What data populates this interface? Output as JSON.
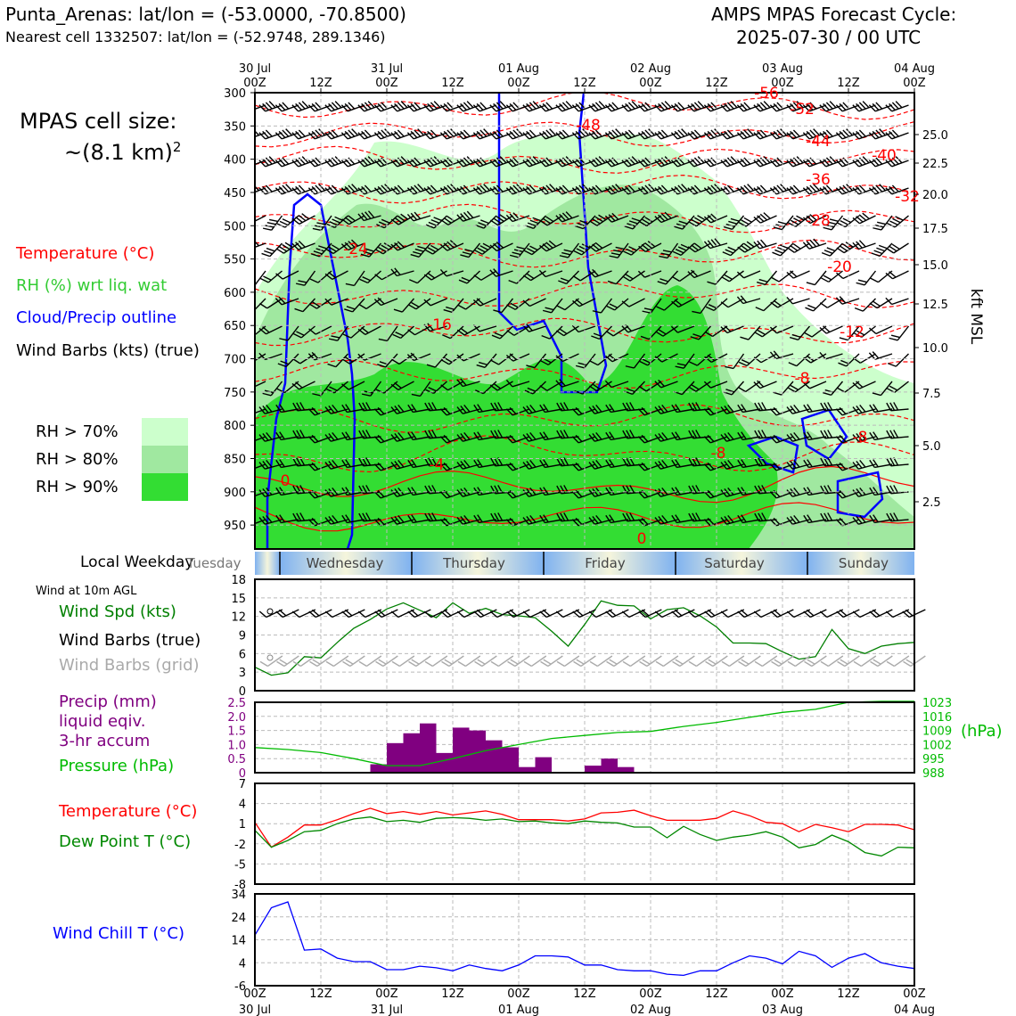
{
  "header": {
    "location": "Punta_Arenas: lat/lon = (-53.0000, -70.8500)",
    "nearest_cell": "Nearest cell 1332507: lat/lon = (-52.9748, 289.1346)",
    "cycle_title": "AMPS MPAS Forecast Cycle:",
    "cycle_time": "2025-07-30 / 00 UTC"
  },
  "cell_size": {
    "line1": "MPAS cell size:",
    "line2": "~(8.1 km)",
    "sup": "2"
  },
  "legend": {
    "temperature": "Temperature (°C)",
    "rh": "RH (%) wrt liq. wat",
    "cloud": "Cloud/Precip outline",
    "barbs": "Wind Barbs (kts) (true)",
    "rh70": "RH > 70%",
    "rh80": "RH > 80%",
    "rh90": "RH > 90%"
  },
  "colors": {
    "temperature": "#ff0000",
    "rh_label": "#33cc33",
    "cloud": "#0000ff",
    "rh70": "#ccffcc",
    "rh80": "#a0e8a0",
    "rh90": "#33dd33",
    "wind_spd": "#007f00",
    "precip": "#800080",
    "pressure": "#00bb00",
    "dewpoint": "#008800",
    "windchill": "#0000ff",
    "grid_barbs": "#aaaaaa"
  },
  "top_axis_dates": [
    "30 Jul",
    "31 Jul",
    "01 Aug",
    "02 Aug",
    "03 Aug",
    "04 Aug"
  ],
  "time_ticks": [
    "00Z",
    "12Z",
    "00Z",
    "12Z",
    "00Z",
    "12Z",
    "00Z",
    "12Z",
    "00Z",
    "12Z",
    "00Z"
  ],
  "bottom_axis_dates": [
    "30 Jul",
    "31 Jul",
    "01 Aug",
    "02 Aug",
    "03 Aug",
    "04 Aug"
  ],
  "cross_section": {
    "pressure_ticks": [
      "300",
      "350",
      "400",
      "450",
      "500",
      "550",
      "600",
      "650",
      "700",
      "750",
      "800",
      "850",
      "900",
      "950"
    ],
    "kft_ticks": [
      "25.0",
      "22.5",
      "20.0",
      "17.5",
      "15.0",
      "12.5",
      "10.0",
      "7.5",
      "5.0",
      "2.5"
    ],
    "kft_label": "kft MSL",
    "temp_labels": [
      "-56",
      "-52",
      "-48",
      "-44",
      "-40",
      "-36",
      "-32",
      "-28",
      "-24",
      "-20",
      "-16",
      "-12",
      "-8",
      "-8",
      "-8",
      "-4",
      "0",
      "0"
    ]
  },
  "weekday": {
    "label": "Local Weekday",
    "days": [
      "Tuesday",
      "Wednesday",
      "Thursday",
      "Friday",
      "Saturday",
      "Sunday"
    ]
  },
  "panel_wind": {
    "title": "Wind at 10m AGL",
    "spd_label": "Wind Spd (kts)",
    "barbs_true": "Wind Barbs (true)",
    "barbs_grid": "Wind Barbs (grid)",
    "y_ticks": [
      "18",
      "15",
      "12",
      "9",
      "6",
      "3",
      "0"
    ]
  },
  "panel_precip": {
    "precip_label": "Precip (mm)",
    "precip_label2": "liquid eqiv.",
    "precip_label3": "3-hr accum",
    "pressure_label": "Pressure (hPa)",
    "left_ticks": [
      "2.5",
      "2.0",
      "1.5",
      "1.0",
      "0.5",
      "0"
    ],
    "right_ticks": [
      "1023",
      "1016",
      "1009",
      "1002",
      "995",
      "988"
    ],
    "right_unit": "(hPa)"
  },
  "panel_temp": {
    "temp_label": "Temperature (°C)",
    "dew_label": "Dew Point T (°C)",
    "y_ticks": [
      "7",
      "4",
      "1",
      "-2",
      "-5",
      "-8"
    ]
  },
  "panel_chill": {
    "label": "Wind Chill T (°C)",
    "y_ticks": [
      "34",
      "24",
      "14",
      "4",
      "-6"
    ]
  },
  "chart_data": [
    {
      "type": "line",
      "title": "Wind at 10m AGL",
      "x_hours": [
        0,
        3,
        6,
        9,
        12,
        15,
        18,
        21,
        24,
        27,
        30,
        33,
        36,
        39,
        42,
        45,
        48,
        51,
        54,
        57,
        60,
        63,
        66,
        69,
        72,
        75,
        78,
        81,
        84,
        87,
        90,
        93,
        96,
        99,
        102,
        105,
        108,
        111,
        114,
        117,
        120
      ],
      "series": [
        {
          "name": "Wind Spd (kts)",
          "values": [
            3.8,
            2.5,
            2.9,
            5.5,
            5.3,
            7.8,
            10.1,
            11.5,
            13.2,
            14.2,
            13,
            11.8,
            14.2,
            12.5,
            13.3,
            12.3,
            12.1,
            11.8,
            9.6,
            7.2,
            10.7,
            14.5,
            13.8,
            13.7,
            11.6,
            13.1,
            13.4,
            12.1,
            10.3,
            7.7,
            7.7,
            7.6,
            6.3,
            5.1,
            5.5,
            9.9,
            6.8,
            6,
            7.2,
            7.6,
            7.8
          ]
        }
      ],
      "ylim": [
        0,
        18
      ]
    },
    {
      "type": "bar",
      "title": "Precip (mm) liquid eqiv. 3-hr accum",
      "x_start_hours": [
        21,
        24,
        27,
        30,
        33,
        36,
        39,
        42,
        45,
        48,
        51,
        60,
        63,
        66
      ],
      "values": [
        0.3,
        1.05,
        1.4,
        1.75,
        0.7,
        1.6,
        1.5,
        1.15,
        0.9,
        0.2,
        0.55,
        0.25,
        0.5,
        0.2
      ],
      "ylim": [
        0,
        2.5
      ]
    },
    {
      "type": "line",
      "title": "Pressure (hPa)",
      "x_hours": [
        0,
        6,
        12,
        18,
        24,
        30,
        36,
        42,
        48,
        54,
        60,
        66,
        72,
        78,
        84,
        90,
        96,
        102,
        108,
        114,
        120
      ],
      "series": [
        {
          "name": "Pressure (hPa)",
          "values": [
            1000.5,
            999.5,
            998,
            995,
            991.5,
            991.5,
            995,
            999,
            1002,
            1005,
            1006.5,
            1008,
            1008.5,
            1011,
            1013,
            1015.5,
            1018,
            1019.5,
            1023,
            1023.5,
            1023.5
          ]
        }
      ],
      "ylim": [
        988,
        1023
      ]
    },
    {
      "type": "line",
      "title": "Temperature / Dew Point",
      "x_hours": [
        0,
        3,
        6,
        9,
        12,
        15,
        18,
        21,
        24,
        27,
        30,
        33,
        36,
        39,
        42,
        45,
        48,
        51,
        54,
        57,
        60,
        63,
        66,
        69,
        72,
        75,
        78,
        81,
        84,
        87,
        90,
        93,
        96,
        99,
        102,
        105,
        108,
        111,
        114,
        117,
        120
      ],
      "series": [
        {
          "name": "Temperature (°C)",
          "values": [
            1.2,
            -2.5,
            -1,
            0.8,
            0.8,
            1.6,
            2.5,
            3.3,
            2.5,
            2.8,
            2.4,
            2.8,
            2.3,
            2.6,
            2.9,
            2.4,
            1.6,
            1.6,
            1.6,
            1.4,
            1.7,
            2.6,
            2.7,
            3,
            2.2,
            1.5,
            1.5,
            1.5,
            1.8,
            2.9,
            2.2,
            1.2,
            1,
            -0.2,
            0.9,
            0.4,
            -0.2,
            0.9,
            0.9,
            0.8,
            0.1
          ]
        },
        {
          "name": "Dew Point T (°C)",
          "values": [
            0,
            -2.5,
            -1.5,
            -0.2,
            0,
            1,
            1.7,
            2,
            1.3,
            1.5,
            1.2,
            1.8,
            1.9,
            1.8,
            1.5,
            1.7,
            1.3,
            1.4,
            1.1,
            1,
            1.4,
            1.2,
            1.1,
            0.5,
            0.5,
            -1.1,
            0.6,
            -0.6,
            -1.5,
            -1,
            -0.7,
            -0.2,
            -1,
            -2.6,
            -2.1,
            -0.7,
            -1.7,
            -3.3,
            -3.8,
            -2.5,
            -2.6
          ]
        }
      ],
      "ylim": [
        -8,
        7
      ]
    },
    {
      "type": "line",
      "title": "Wind Chill T (°C)",
      "x_hours": [
        0,
        3,
        6,
        9,
        12,
        15,
        18,
        21,
        24,
        27,
        30,
        33,
        36,
        39,
        42,
        45,
        48,
        51,
        54,
        57,
        60,
        63,
        66,
        69,
        72,
        75,
        78,
        81,
        84,
        87,
        90,
        93,
        96,
        99,
        102,
        105,
        108,
        111,
        114,
        117,
        120
      ],
      "series": [
        {
          "name": "Wind Chill T (°C)",
          "values": [
            16,
            28,
            30.5,
            9.5,
            10,
            6,
            4.5,
            4.5,
            1,
            1,
            2.5,
            1.8,
            0.5,
            3,
            1.5,
            0.5,
            3,
            7,
            7,
            6.5,
            3,
            3,
            1,
            0.5,
            0.5,
            -1,
            -1.5,
            0.5,
            0.5,
            4,
            7,
            6,
            3.5,
            9,
            7,
            2,
            6,
            8,
            4,
            2.5,
            1.5
          ]
        }
      ],
      "ylim": [
        -6,
        34
      ]
    }
  ]
}
